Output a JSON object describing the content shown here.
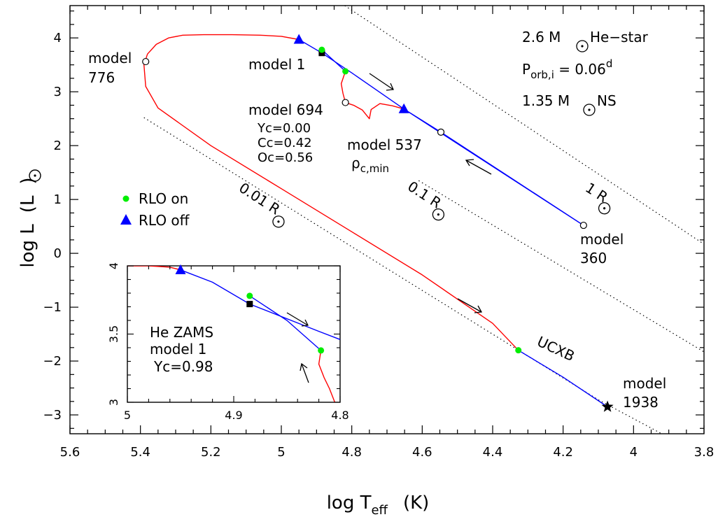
{
  "chart_data": {
    "type": "line",
    "xlabel": {
      "main": "log T",
      "sub": "eff",
      "unit": "(K)"
    },
    "ylabel": {
      "main": "log L",
      "unit_pre": "(L",
      "unit_post": ")"
    },
    "xlim": [
      5.6,
      3.8
    ],
    "ylim": [
      -3.35,
      4.6
    ],
    "xticks": [
      "5.6",
      "5.4",
      "5.2",
      "5",
      "4.8",
      "4.6",
      "4.4",
      "4.2",
      "4",
      "3.8"
    ],
    "xtick_values": [
      5.6,
      5.4,
      5.2,
      5.0,
      4.8,
      4.6,
      4.4,
      4.2,
      4.0,
      3.8
    ],
    "yticks": [
      "4",
      "3",
      "2",
      "1",
      "0",
      "−1",
      "−2",
      "−3"
    ],
    "ytick_values": [
      4,
      3,
      2,
      1,
      0,
      -1,
      -2,
      -3
    ],
    "colors": {
      "rlo_off_track": "#ff0000",
      "rlo_on_track": "#0000ff",
      "rlo_on_marker": "#00ee00",
      "rlo_off_marker": "#0000ff",
      "frame": "#000000"
    },
    "series": [
      {
        "name": "RLO on",
        "marker": "circle",
        "color": "#00ee00",
        "points": [
          [
            4.885,
            3.78
          ],
          [
            4.818,
            3.38
          ],
          [
            4.327,
            -1.8
          ]
        ]
      },
      {
        "name": "RLO off",
        "marker": "triangle",
        "color": "#0000ff",
        "points": [
          [
            4.95,
            3.97
          ],
          [
            4.652,
            2.68
          ]
        ]
      },
      {
        "color": "#ff0000",
        "points": [
          [
            4.95,
            3.97
          ],
          [
            5.0,
            4.03
          ],
          [
            5.06,
            4.05
          ],
          [
            5.14,
            4.06
          ],
          [
            5.22,
            4.06
          ],
          [
            5.28,
            4.05
          ],
          [
            5.32,
            4.0
          ],
          [
            5.355,
            3.88
          ],
          [
            5.38,
            3.7
          ],
          [
            5.39,
            3.5
          ],
          [
            5.385,
            3.1
          ],
          [
            5.35,
            2.7
          ],
          [
            5.2,
            2.0
          ],
          [
            5.0,
            1.2
          ],
          [
            4.8,
            0.4
          ],
          [
            4.6,
            -0.4
          ],
          [
            4.4,
            -1.3
          ],
          [
            4.327,
            -1.8
          ]
        ]
      },
      {
        "color": "#ff0000",
        "points": [
          [
            4.818,
            3.38
          ],
          [
            4.83,
            3.15
          ],
          [
            4.825,
            2.97
          ],
          [
            4.818,
            2.8
          ],
          [
            4.795,
            2.75
          ],
          [
            4.77,
            2.66
          ],
          [
            4.75,
            2.5
          ],
          [
            4.745,
            2.67
          ],
          [
            4.72,
            2.78
          ],
          [
            4.685,
            2.74
          ],
          [
            4.652,
            2.68
          ]
        ]
      },
      {
        "color": "#0000ff",
        "points": [
          [
            4.95,
            3.97
          ],
          [
            4.885,
            3.72
          ],
          [
            4.8,
            3.35
          ],
          [
            4.652,
            2.68
          ]
        ]
      },
      {
        "color": "#0000ff",
        "points": [
          [
            4.885,
            3.78
          ],
          [
            4.818,
            3.38
          ]
        ]
      },
      {
        "color": "#0000ff",
        "points": [
          [
            4.652,
            2.68
          ],
          [
            4.547,
            2.25
          ],
          [
            4.142,
            0.52
          ],
          [
            4.652,
            2.68
          ]
        ]
      },
      {
        "color": "#0000ff",
        "points": [
          [
            4.327,
            -1.8
          ],
          [
            4.2,
            -2.3
          ],
          [
            4.074,
            -2.85
          ]
        ]
      }
    ],
    "radius_lines": [
      {
        "label": "1 R",
        "points": [
          [
            4.82,
            4.6
          ],
          [
            3.8,
            0.17
          ]
        ]
      },
      {
        "label": "0.1 R",
        "points": [
          [
            4.61,
            1.35
          ],
          [
            3.8,
            -1.83
          ]
        ]
      },
      {
        "label": "0.01 R",
        "points": [
          [
            5.39,
            2.52
          ],
          [
            4.1,
            -2.72
          ],
          [
            3.92,
            -3.35
          ]
        ]
      }
    ],
    "special_points": {
      "zams_square": [
        4.885,
        3.72
      ],
      "model_776": [
        5.385,
        3.56
      ],
      "model_694": [
        4.818,
        2.8
      ],
      "model_537": [
        4.547,
        2.25
      ],
      "model_360": [
        4.142,
        0.52
      ],
      "model_1938": [
        4.074,
        -2.85
      ]
    },
    "annotations": {
      "system": [
        "2.6 M",
        " He−star"
      ],
      "porb_main": "P",
      "porb_sub": "orb,i",
      "porb_val": " = 0.06",
      "porb_sup": "d",
      "ns": [
        "1.35 M",
        " NS"
      ],
      "model1": "model 1",
      "model776_a": "model",
      "model776_b": "776",
      "model694": "model 694",
      "yc": "Yc=0.00",
      "cc": "Cc=0.42",
      "oc": "Oc=0.56",
      "model537": "model 537",
      "rho": "ρ",
      "rho_sub": "c,min",
      "model360_a": "model",
      "model360_b": "360",
      "model1938_a": "model",
      "model1938_b": "1938",
      "ucxb": "UCXB",
      "r1": "1 R",
      "r01": "0.1 R",
      "r001": "0.01 R",
      "legend_on": "RLO on",
      "legend_off": "RLO off"
    },
    "inset": {
      "xlim": [
        5.0,
        4.8
      ],
      "ylim": [
        3.0,
        4.0
      ],
      "xticks": [
        "5",
        "4.9",
        "4.8"
      ],
      "xtick_values": [
        5.0,
        4.9,
        4.8
      ],
      "yticks": [
        "3",
        "3.5",
        "4"
      ],
      "ytick_values": [
        3.0,
        3.5,
        4.0
      ],
      "labels": [
        "He ZAMS",
        "model 1",
        "Yc=0.98"
      ],
      "series": [
        {
          "color": "#ff0000",
          "points": [
            [
              5.0,
              4.0
            ],
            [
              4.98,
              4.0
            ],
            [
              4.96,
              3.99
            ],
            [
              4.95,
              3.97
            ]
          ]
        },
        {
          "color": "#0000ff",
          "points": [
            [
              4.95,
              3.97
            ],
            [
              4.92,
              3.88
            ],
            [
              4.885,
              3.72
            ],
            [
              4.82,
              3.52
            ],
            [
              4.8,
              3.46
            ]
          ]
        },
        {
          "color": "#0000ff",
          "points": [
            [
              4.885,
              3.78
            ],
            [
              4.85,
              3.6
            ],
            [
              4.818,
              3.38
            ]
          ]
        },
        {
          "color": "#ff0000",
          "points": [
            [
              4.818,
              3.38
            ],
            [
              4.82,
              3.28
            ],
            [
              4.815,
              3.18
            ],
            [
              4.81,
              3.1
            ],
            [
              4.805,
              3.0
            ]
          ]
        }
      ],
      "rlo_on": [
        [
          4.885,
          3.78
        ],
        [
          4.818,
          3.38
        ]
      ],
      "rlo_off": [
        [
          4.95,
          3.97
        ]
      ],
      "zams_square": [
        4.885,
        3.72
      ]
    }
  }
}
